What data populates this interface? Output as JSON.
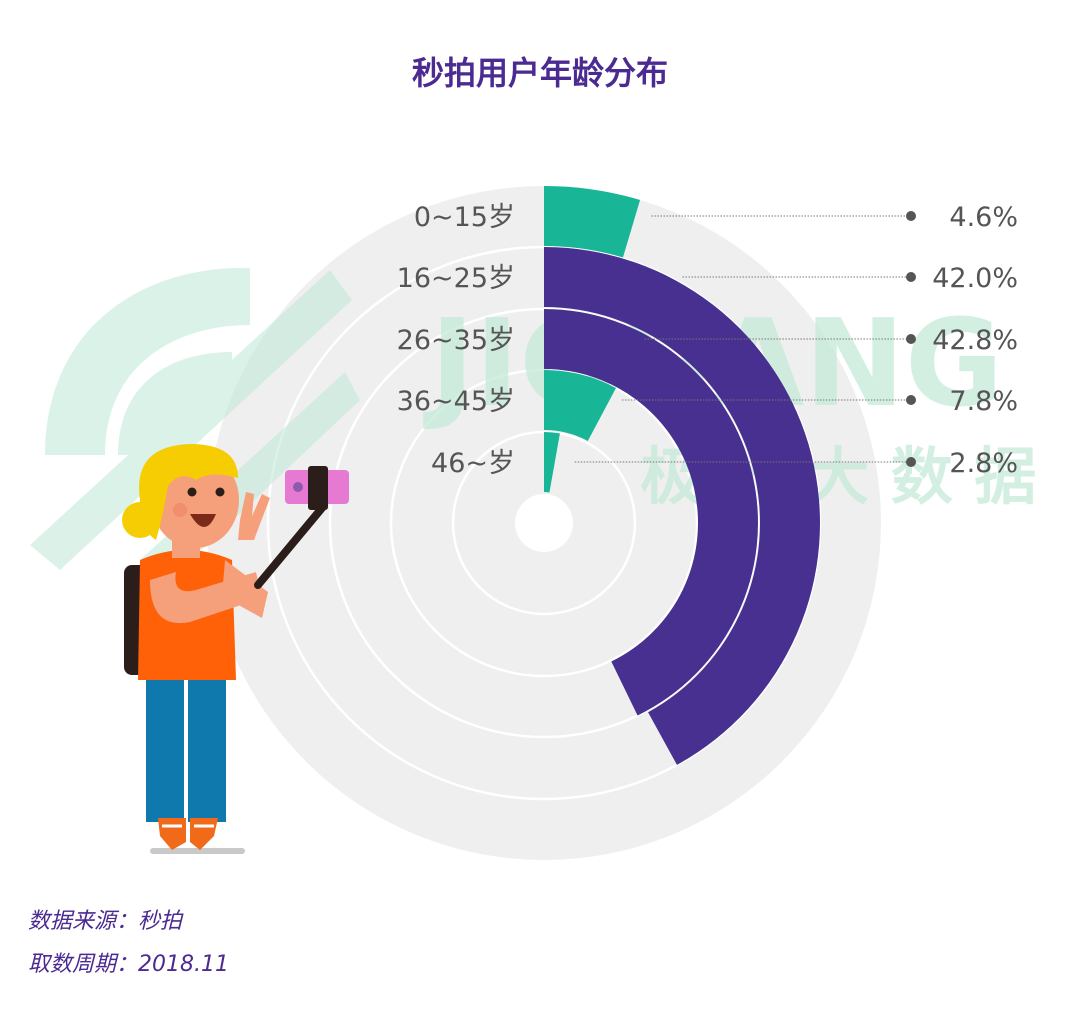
{
  "title": "秒拍用户年龄分布",
  "watermark": {
    "brand": "JIGUANG",
    "cn": "极 光 大 数 据"
  },
  "footer": {
    "source": "数据来源：秒拍",
    "period": "取数周期：2018.11"
  },
  "colors": {
    "title": "#4b2a91",
    "teal": "#18b696",
    "purple": "#47308f",
    "track": "#efefef",
    "text": "#555555"
  },
  "chart_data": {
    "type": "radial-bar",
    "title": "秒拍用户年龄分布",
    "unit": "%",
    "categories": [
      "0~15岁",
      "16~25岁",
      "26~35岁",
      "36~45岁",
      "46~岁"
    ],
    "values": [
      4.6,
      42.0,
      42.8,
      7.8,
      2.8
    ],
    "value_labels": [
      "4.6%",
      "42.0%",
      "42.8%",
      "7.8%",
      "2.8%"
    ],
    "series_colors": [
      "#18b696",
      "#47308f",
      "#47308f",
      "#18b696",
      "#18b696"
    ],
    "full_scale": 100
  }
}
